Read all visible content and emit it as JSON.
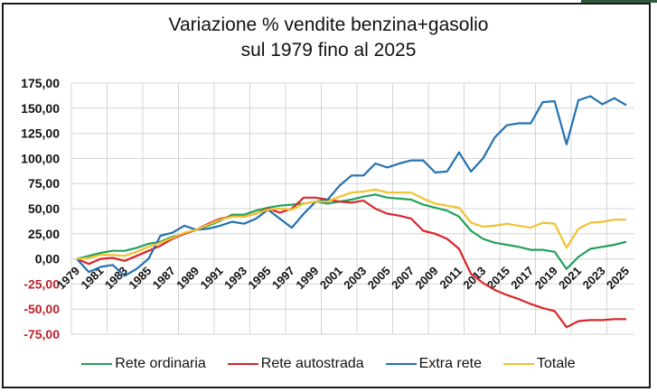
{
  "chart_data": {
    "type": "line",
    "title": [
      "Variazione % vendite benzina+gasolio",
      "sul 1979 fino al 2025"
    ],
    "xlabel": "",
    "ylabel": "",
    "ylim": [
      -75,
      175
    ],
    "ytick_values": [
      175,
      150,
      125,
      100,
      75,
      50,
      25,
      0,
      -25,
      -50,
      -75
    ],
    "ytick_labels": [
      "175,00",
      "150,00",
      "125,00",
      "100,00",
      "75,00",
      "50,00",
      "25,00",
      "0,00",
      "-25,00",
      "-50,00",
      "-75,00"
    ],
    "x": [
      1979,
      1980,
      1981,
      1982,
      1983,
      1984,
      1985,
      1986,
      1987,
      1988,
      1989,
      1990,
      1991,
      1992,
      1993,
      1994,
      1995,
      1996,
      1997,
      1998,
      1999,
      2000,
      2001,
      2002,
      2003,
      2004,
      2005,
      2006,
      2007,
      2008,
      2009,
      2010,
      2011,
      2012,
      2013,
      2014,
      2015,
      2016,
      2017,
      2018,
      2019,
      2020,
      2021,
      2022,
      2023,
      2024,
      2025
    ],
    "xtick_labels": [
      "1979",
      "1981",
      "1983",
      "1985",
      "1987",
      "1989",
      "1991",
      "1993",
      "1995",
      "1997",
      "1999",
      "2001",
      "2003",
      "2005",
      "2007",
      "2009",
      "2011",
      "2013",
      "2015",
      "2017",
      "2019",
      "2021",
      "2023",
      "2025"
    ],
    "grid": true,
    "legend_position": "bottom",
    "negative_tick_color": "#c0202a",
    "series": [
      {
        "name": "Rete ordinaria",
        "color": "#22a05a",
        "values": [
          0,
          3,
          6,
          8,
          8,
          11,
          15,
          17,
          22,
          25,
          29,
          33,
          38,
          44,
          44,
          48,
          51,
          53,
          54,
          55,
          57,
          55,
          57,
          59,
          62,
          64,
          61,
          60,
          59,
          54,
          51,
          48,
          42,
          28,
          20,
          16,
          14,
          12,
          9,
          9,
          7,
          -10,
          2,
          10,
          12,
          14,
          17
        ]
      },
      {
        "name": "Rete autostrada",
        "color": "#d9262b",
        "values": [
          0,
          -5,
          0,
          1,
          -2,
          3,
          8,
          13,
          20,
          25,
          29,
          35,
          40,
          42,
          42,
          45,
          50,
          46,
          50,
          61,
          61,
          59,
          57,
          56,
          58,
          50,
          45,
          43,
          40,
          28,
          25,
          20,
          10,
          -15,
          -24,
          -31,
          -36,
          -40,
          -45,
          -49,
          -52,
          -68,
          -62,
          -61,
          -61,
          -60,
          -60
        ]
      },
      {
        "name": "Extra rete",
        "color": "#2371b0",
        "values": [
          0,
          -13,
          -8,
          -6,
          -17,
          -10,
          0,
          23,
          26,
          33,
          29,
          30,
          33,
          37,
          35,
          40,
          49,
          40,
          31,
          45,
          57,
          59,
          73,
          83,
          83,
          95,
          91,
          95,
          98,
          98,
          86,
          87,
          106,
          87,
          100,
          121,
          133,
          135,
          135,
          156,
          157,
          114,
          158,
          162,
          154,
          160,
          153
        ]
      },
      {
        "name": "Totale",
        "color": "#f2c12e",
        "values": [
          0,
          1,
          4,
          4,
          3,
          7,
          12,
          16,
          21,
          26,
          29,
          34,
          39,
          42,
          42,
          45,
          49,
          50,
          49,
          55,
          57,
          57,
          62,
          66,
          67,
          69,
          66,
          66,
          66,
          60,
          55,
          53,
          51,
          36,
          32,
          33,
          35,
          33,
          31,
          36,
          35,
          11,
          30,
          36,
          37,
          39,
          39
        ]
      }
    ]
  }
}
